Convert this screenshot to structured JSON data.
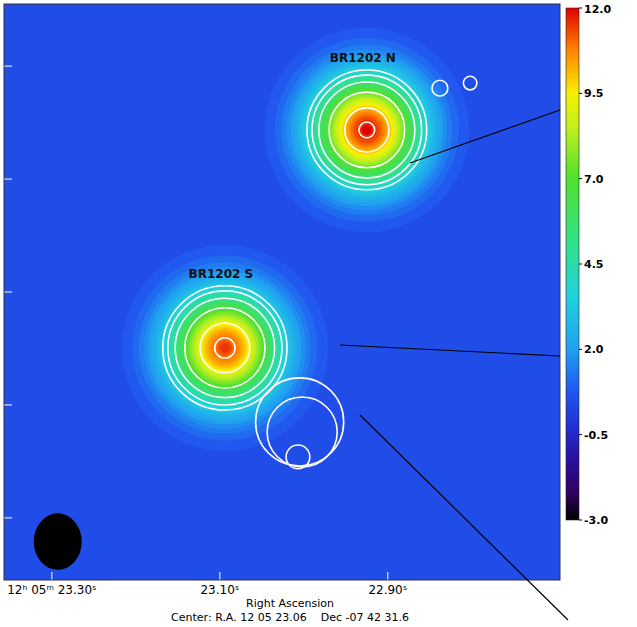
{
  "chart_data": {
    "type": "heatmap",
    "xlabel": "Right Ascension",
    "annotation": "Center: R.A. 12 05 23.06    Dec -07 42 31.6",
    "xlim": [
      23.357,
      22.695
    ],
    "xticks": [
      {
        "value": 23.3,
        "label": "12ʰ 05ᵐ 23.30ˢ"
      },
      {
        "value": 23.1,
        "label": "23.10ˢ"
      },
      {
        "value": 22.9,
        "label": "22.90ˢ"
      }
    ],
    "ylim": [
      -5.1,
      5.1
    ],
    "yticks": [
      -4,
      -2,
      0,
      2,
      4
    ],
    "tick_labels": "x",
    "background": 0.5,
    "sources": [
      {
        "label": "BR1202 N",
        "x": 22.925,
        "y": 2.87,
        "peak": 12,
        "size": 0.67
      },
      {
        "label": "BR1202 S",
        "x": 23.094,
        "y": -0.99,
        "peak": 11.5,
        "size": 0.68
      }
    ],
    "contours": [
      {
        "x": 22.925,
        "y": 2.87,
        "radius": 1.06
      },
      {
        "x": 22.925,
        "y": 2.87,
        "radius": 0.97
      },
      {
        "x": 22.925,
        "y": 2.87,
        "radius": 0.85
      },
      {
        "x": 22.925,
        "y": 2.87,
        "radius": 0.67
      },
      {
        "x": 22.925,
        "y": 2.87,
        "radius": 0.39
      },
      {
        "x": 22.925,
        "y": 2.87,
        "radius": 0.14
      },
      {
        "x": 23.094,
        "y": -0.99,
        "radius": 1.1
      },
      {
        "x": 23.094,
        "y": -0.99,
        "radius": 1.01
      },
      {
        "x": 23.094,
        "y": -0.99,
        "radius": 0.88
      },
      {
        "x": 23.094,
        "y": -0.99,
        "radius": 0.71
      },
      {
        "x": 23.094,
        "y": -0.99,
        "radius": 0.44
      },
      {
        "x": 23.094,
        "y": -0.99,
        "radius": 0.18
      },
      {
        "x": 23.005,
        "y": -2.3,
        "radius": 0.78
      },
      {
        "x": 23.002,
        "y": -2.48,
        "radius": 0.62
      },
      {
        "x": 23.007,
        "y": -2.92,
        "radius": 0.21
      },
      {
        "x": 22.838,
        "y": 3.61,
        "radius": 0.14
      },
      {
        "x": 22.802,
        "y": 3.7,
        "radius": 0.12
      }
    ],
    "beam": {
      "x": 23.293,
      "y": -4.42,
      "major": 1.0,
      "minor": 0.85
    },
    "colorbar": {
      "range": [
        -3,
        12
      ],
      "ticks": [
        {
          "value": 12,
          "label": "12.0"
        },
        {
          "value": 9.5,
          "label": "9.5"
        },
        {
          "value": 7,
          "label": "7.0"
        },
        {
          "value": 4.5,
          "label": "4.5"
        },
        {
          "value": 2,
          "label": "2.0"
        },
        {
          "value": -0.5,
          "label": "-0.5"
        },
        {
          "value": -3,
          "label": "-3.0"
        }
      ]
    }
  }
}
